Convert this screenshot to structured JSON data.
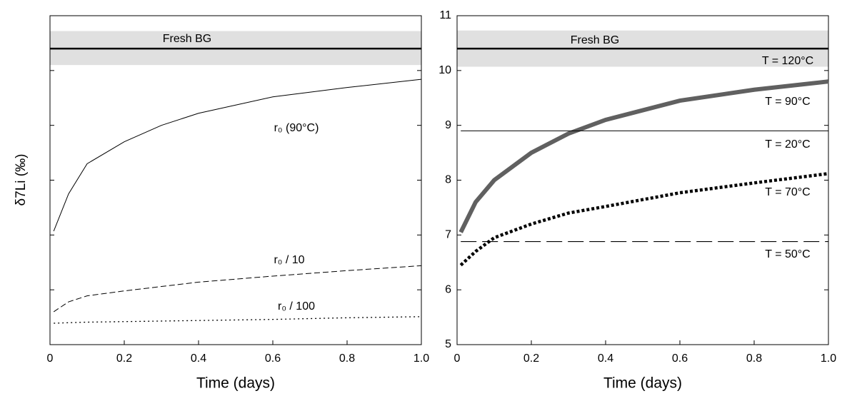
{
  "chart_data": [
    {
      "type": "line",
      "ylabel": "δ7Li (‰)",
      "xlabel": "Time (days)",
      "x": [
        0.01,
        0.05,
        0.1,
        0.2,
        0.3,
        0.4,
        0.6,
        0.8,
        1.0
      ],
      "xlim": [
        0,
        1
      ],
      "xticks": [
        0,
        0.2,
        0.4,
        0.6,
        0.8,
        {
          "value": 1,
          "label": "1.0"
        }
      ],
      "ylim": [
        5,
        11
      ],
      "yticks": [
        5,
        6,
        7,
        8,
        9,
        10,
        11
      ],
      "ytick_labels_shown": false,
      "band": {
        "label": "Fresh BG",
        "value": 10.4,
        "range": [
          10.1,
          10.72
        ],
        "color": "#e0e0e0"
      },
      "series": [
        {
          "name": "r₀ (90°C)",
          "color": "#000000",
          "style": "solid",
          "values": [
            7.07,
            7.75,
            8.3,
            8.7,
            9.0,
            9.22,
            9.52,
            9.69,
            9.84
          ]
        },
        {
          "name": "r₀ / 10",
          "color": "#000000",
          "style": "dashed",
          "values": [
            5.6,
            5.78,
            5.89,
            5.98,
            6.06,
            6.14,
            6.25,
            6.35,
            6.44
          ]
        },
        {
          "name": "r₀ / 100",
          "color": "#000000",
          "style": "dotted",
          "values": [
            5.39,
            5.4,
            5.41,
            5.42,
            5.43,
            5.44,
            5.46,
            5.49,
            5.51
          ]
        }
      ]
    },
    {
      "type": "line",
      "xlabel": "Time (days)",
      "x": [
        0.01,
        0.05,
        0.1,
        0.2,
        0.3,
        0.4,
        0.6,
        0.8,
        1.0
      ],
      "xlim": [
        0,
        1
      ],
      "xticks": [
        0,
        0.2,
        0.4,
        0.6,
        0.8,
        {
          "value": 1,
          "label": "1.0"
        }
      ],
      "ylim": [
        5,
        11
      ],
      "yticks": [
        5,
        6,
        7,
        8,
        9,
        10,
        11
      ],
      "ytick_labels_shown": true,
      "band": {
        "label": "Fresh BG",
        "value": 10.4,
        "range": [
          10.07,
          10.73
        ],
        "color": "#e0e0e0",
        "annotation": "T = 120°C"
      },
      "series": [
        {
          "name": "T = 90°C",
          "color": "#606060",
          "style": "thick",
          "values": [
            7.05,
            7.6,
            8.0,
            8.5,
            8.85,
            9.1,
            9.45,
            9.65,
            9.8
          ]
        },
        {
          "name": "T = 20°C",
          "color": "#000000",
          "style": "solid",
          "values": [
            8.9,
            8.9,
            8.9,
            8.9,
            8.9,
            8.9,
            8.9,
            8.9,
            8.9
          ]
        },
        {
          "name": "T = 70°C",
          "color": "#000000",
          "style": "thick-dotted",
          "values": [
            6.45,
            6.7,
            6.95,
            7.2,
            7.4,
            7.52,
            7.77,
            7.95,
            8.12
          ]
        },
        {
          "name": "T = 50°C",
          "color": "#000000",
          "style": "long-dashed",
          "values": [
            6.88,
            6.88,
            6.88,
            6.88,
            6.88,
            6.88,
            6.88,
            6.88,
            6.88
          ]
        }
      ]
    }
  ]
}
